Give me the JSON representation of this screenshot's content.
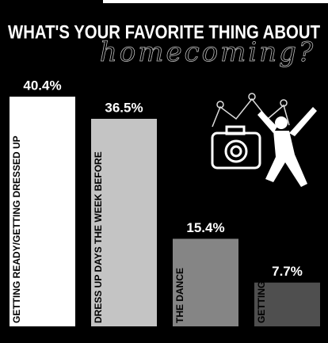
{
  "chart_data": {
    "type": "bar",
    "title": "WHAT'S YOUR FAVORITE THING ABOUT",
    "subtitle": "homecoming?",
    "categories": [
      "GETTING READY/GETTING DRESSED UP",
      "DRESS UP DAYS THE WEEK BEFORE",
      "THE DANCE",
      "GETTING PICTURES"
    ],
    "values": [
      40.4,
      36.5,
      15.4,
      7.7
    ],
    "value_labels": [
      "40.4%",
      "36.5%",
      "15.4%",
      "7.7%"
    ],
    "colors": [
      "#ffffff",
      "#c4c4c4",
      "#858585",
      "#4f4f4f"
    ]
  }
}
